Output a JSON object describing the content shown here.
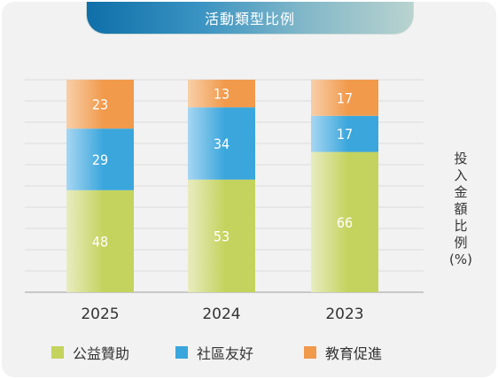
{
  "chart_data": {
    "type": "bar",
    "stacked": true,
    "title": "活動類型比例",
    "categories": [
      "2025",
      "2024",
      "2023"
    ],
    "series": [
      {
        "name": "公益贊助",
        "values": [
          48,
          53,
          66
        ],
        "color": "#c4d35e"
      },
      {
        "name": "社區友好",
        "values": [
          29,
          34,
          17
        ],
        "color": "#3aa6dc"
      },
      {
        "name": "教育促進",
        "values": [
          23,
          13,
          17
        ],
        "color": "#f19a4c"
      }
    ],
    "ylabel_chars": [
      "投",
      "入",
      "金",
      "額",
      "比",
      "例",
      "(%)"
    ],
    "ylim": [
      0,
      100
    ],
    "grid": true,
    "legend_position": "bottom"
  }
}
